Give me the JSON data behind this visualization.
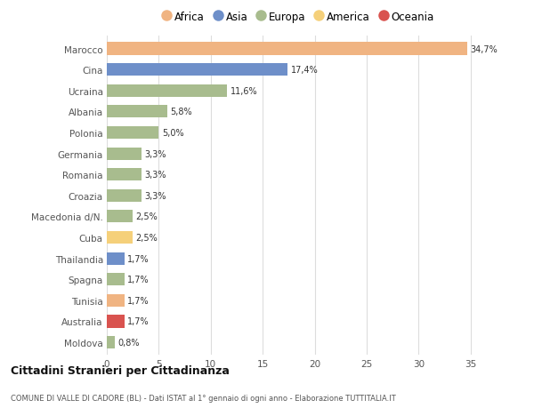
{
  "categories": [
    "Marocco",
    "Cina",
    "Ucraina",
    "Albania",
    "Polonia",
    "Germania",
    "Romania",
    "Croazia",
    "Macedonia d/N.",
    "Cuba",
    "Thailandia",
    "Spagna",
    "Tunisia",
    "Australia",
    "Moldova"
  ],
  "values": [
    34.7,
    17.4,
    11.6,
    5.8,
    5.0,
    3.3,
    3.3,
    3.3,
    2.5,
    2.5,
    1.7,
    1.7,
    1.7,
    1.7,
    0.8
  ],
  "labels": [
    "34,7%",
    "17,4%",
    "11,6%",
    "5,8%",
    "5,0%",
    "3,3%",
    "3,3%",
    "3,3%",
    "2,5%",
    "2,5%",
    "1,7%",
    "1,7%",
    "1,7%",
    "1,7%",
    "0,8%"
  ],
  "bar_colors": [
    "#f0b482",
    "#6e8fc9",
    "#a8bc8e",
    "#a8bc8e",
    "#a8bc8e",
    "#a8bc8e",
    "#a8bc8e",
    "#a8bc8e",
    "#a8bc8e",
    "#f5d07a",
    "#6e8fc9",
    "#a8bc8e",
    "#f0b482",
    "#d9534f",
    "#a8bc8e"
  ],
  "continent_colors": {
    "Africa": "#f0b482",
    "Asia": "#6e8fc9",
    "Europa": "#a8bc8e",
    "America": "#f5d07a",
    "Oceania": "#d9534f"
  },
  "legend_order": [
    "Africa",
    "Asia",
    "Europa",
    "America",
    "Oceania"
  ],
  "title1": "Cittadini Stranieri per Cittadinanza",
  "title2": "COMUNE DI VALLE DI CADORE (BL) - Dati ISTAT al 1° gennaio di ogni anno - Elaborazione TUTTITALIA.IT",
  "xlim": [
    0,
    37
  ],
  "xticks": [
    0,
    5,
    10,
    15,
    20,
    25,
    30,
    35
  ],
  "background_color": "#ffffff",
  "grid_color": "#dddddd"
}
